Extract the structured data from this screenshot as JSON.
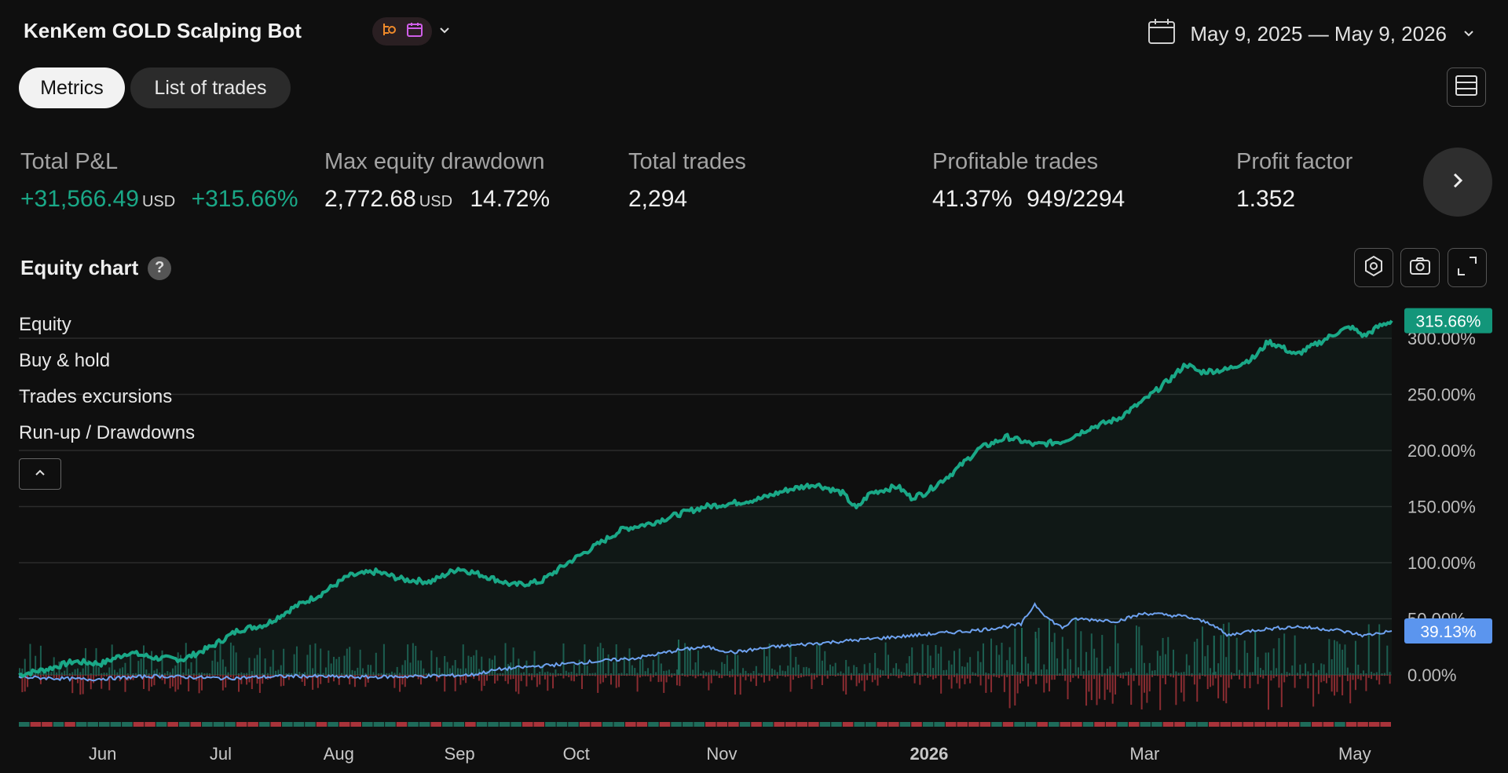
{
  "header": {
    "title": "KenKem GOLD Scalping Bot",
    "date_range": "May 9, 2025 — May 9, 2026"
  },
  "tabs": [
    {
      "label": "Metrics",
      "active": true
    },
    {
      "label": "List of trades",
      "active": false
    }
  ],
  "metrics": {
    "total_pnl": {
      "label": "Total P&L",
      "value": "+31,566.49",
      "unit": "USD",
      "pct": "+315.66%"
    },
    "max_drawdown": {
      "label": "Max equity drawdown",
      "value": "2,772.68",
      "unit": "USD",
      "pct": "14.72%"
    },
    "total_trades": {
      "label": "Total trades",
      "value": "2,294"
    },
    "profitable_trades": {
      "label": "Profitable trades",
      "value": "41.37%",
      "ratio": "949/2294"
    },
    "profit_factor": {
      "label": "Profit factor",
      "value": "1.352"
    }
  },
  "equity_chart": {
    "title": "Equity chart",
    "help": "?"
  },
  "legend": {
    "equity": "Equity",
    "buy_hold": "Buy & hold",
    "excursions": "Trades excursions",
    "runup": "Run-up / Drawdowns"
  },
  "colors": {
    "equity": "#1aa887",
    "buy_hold": "#6ea2f0",
    "positive_bar": "#1e6b5a",
    "negative_bar": "#a8333a",
    "background": "#0f0f0f"
  },
  "icons": [
    "strategy-icon",
    "calendar-icon",
    "chevron-down-icon",
    "layout-icon",
    "chevron-right-icon",
    "settings-icon",
    "camera-icon",
    "expand-icon",
    "chevron-up-icon"
  ],
  "chart_data": {
    "type": "line",
    "title": "Equity chart",
    "x": [
      "Jun",
      "Jul",
      "Aug",
      "Sep",
      "Oct",
      "Nov",
      "2026",
      "Mar",
      "May"
    ],
    "x_ticks": [
      "Jun",
      "Jul",
      "Aug",
      "Sep",
      "Oct",
      "Nov",
      "2026",
      "Mar",
      "May"
    ],
    "ylim": [
      -5,
      320
    ],
    "y_ticks": [
      "300.00%",
      "250.00%",
      "200.00%",
      "150.00%",
      "100.00%",
      "50.00%",
      "0.00%"
    ],
    "y_tick_values": [
      300,
      250,
      200,
      150,
      100,
      50,
      0
    ],
    "grid": true,
    "series": [
      {
        "name": "Equity",
        "last_label": "315.66%",
        "points": [
          [
            0,
            0
          ],
          [
            0.02,
            5
          ],
          [
            0.04,
            12
          ],
          [
            0.06,
            10
          ],
          [
            0.08,
            20
          ],
          [
            0.1,
            15
          ],
          [
            0.12,
            14
          ],
          [
            0.14,
            25
          ],
          [
            0.16,
            40
          ],
          [
            0.18,
            45
          ],
          [
            0.2,
            60
          ],
          [
            0.22,
            72
          ],
          [
            0.24,
            88
          ],
          [
            0.26,
            92
          ],
          [
            0.28,
            85
          ],
          [
            0.3,
            83
          ],
          [
            0.32,
            95
          ],
          [
            0.34,
            88
          ],
          [
            0.36,
            80
          ],
          [
            0.38,
            83
          ],
          [
            0.4,
            100
          ],
          [
            0.42,
            115
          ],
          [
            0.44,
            130
          ],
          [
            0.46,
            135
          ],
          [
            0.48,
            143
          ],
          [
            0.5,
            150
          ],
          [
            0.52,
            153
          ],
          [
            0.54,
            157
          ],
          [
            0.56,
            165
          ],
          [
            0.58,
            170
          ],
          [
            0.6,
            162
          ],
          [
            0.61,
            148
          ],
          [
            0.62,
            162
          ],
          [
            0.64,
            168
          ],
          [
            0.65,
            158
          ],
          [
            0.66,
            162
          ],
          [
            0.68,
            180
          ],
          [
            0.7,
            202
          ],
          [
            0.72,
            212
          ],
          [
            0.74,
            205
          ],
          [
            0.76,
            208
          ],
          [
            0.78,
            220
          ],
          [
            0.8,
            228
          ],
          [
            0.82,
            245
          ],
          [
            0.84,
            265
          ],
          [
            0.85,
            277
          ],
          [
            0.86,
            270
          ],
          [
            0.88,
            272
          ],
          [
            0.9,
            283
          ],
          [
            0.91,
            297
          ],
          [
            0.92,
            292
          ],
          [
            0.93,
            285
          ],
          [
            0.95,
            298
          ],
          [
            0.96,
            305
          ],
          [
            0.97,
            310
          ],
          [
            0.98,
            302
          ],
          [
            0.99,
            310
          ],
          [
            1.0,
            315.66
          ]
        ]
      },
      {
        "name": "Buy & hold",
        "last_label": "39.13%",
        "points": [
          [
            0,
            -2
          ],
          [
            0.05,
            -4
          ],
          [
            0.1,
            -1
          ],
          [
            0.15,
            -3
          ],
          [
            0.2,
            -1
          ],
          [
            0.25,
            -2
          ],
          [
            0.3,
            -1
          ],
          [
            0.33,
            0
          ],
          [
            0.35,
            5
          ],
          [
            0.4,
            10
          ],
          [
            0.45,
            15
          ],
          [
            0.48,
            22
          ],
          [
            0.5,
            25
          ],
          [
            0.52,
            20
          ],
          [
            0.55,
            25
          ],
          [
            0.6,
            30
          ],
          [
            0.65,
            35
          ],
          [
            0.7,
            40
          ],
          [
            0.73,
            45
          ],
          [
            0.74,
            63
          ],
          [
            0.75,
            50
          ],
          [
            0.76,
            42
          ],
          [
            0.77,
            50
          ],
          [
            0.8,
            48
          ],
          [
            0.82,
            55
          ],
          [
            0.85,
            52
          ],
          [
            0.87,
            45
          ],
          [
            0.88,
            35
          ],
          [
            0.9,
            40
          ],
          [
            0.93,
            43
          ],
          [
            0.96,
            40
          ],
          [
            0.98,
            35
          ],
          [
            1.0,
            39.13
          ]
        ]
      }
    ]
  }
}
